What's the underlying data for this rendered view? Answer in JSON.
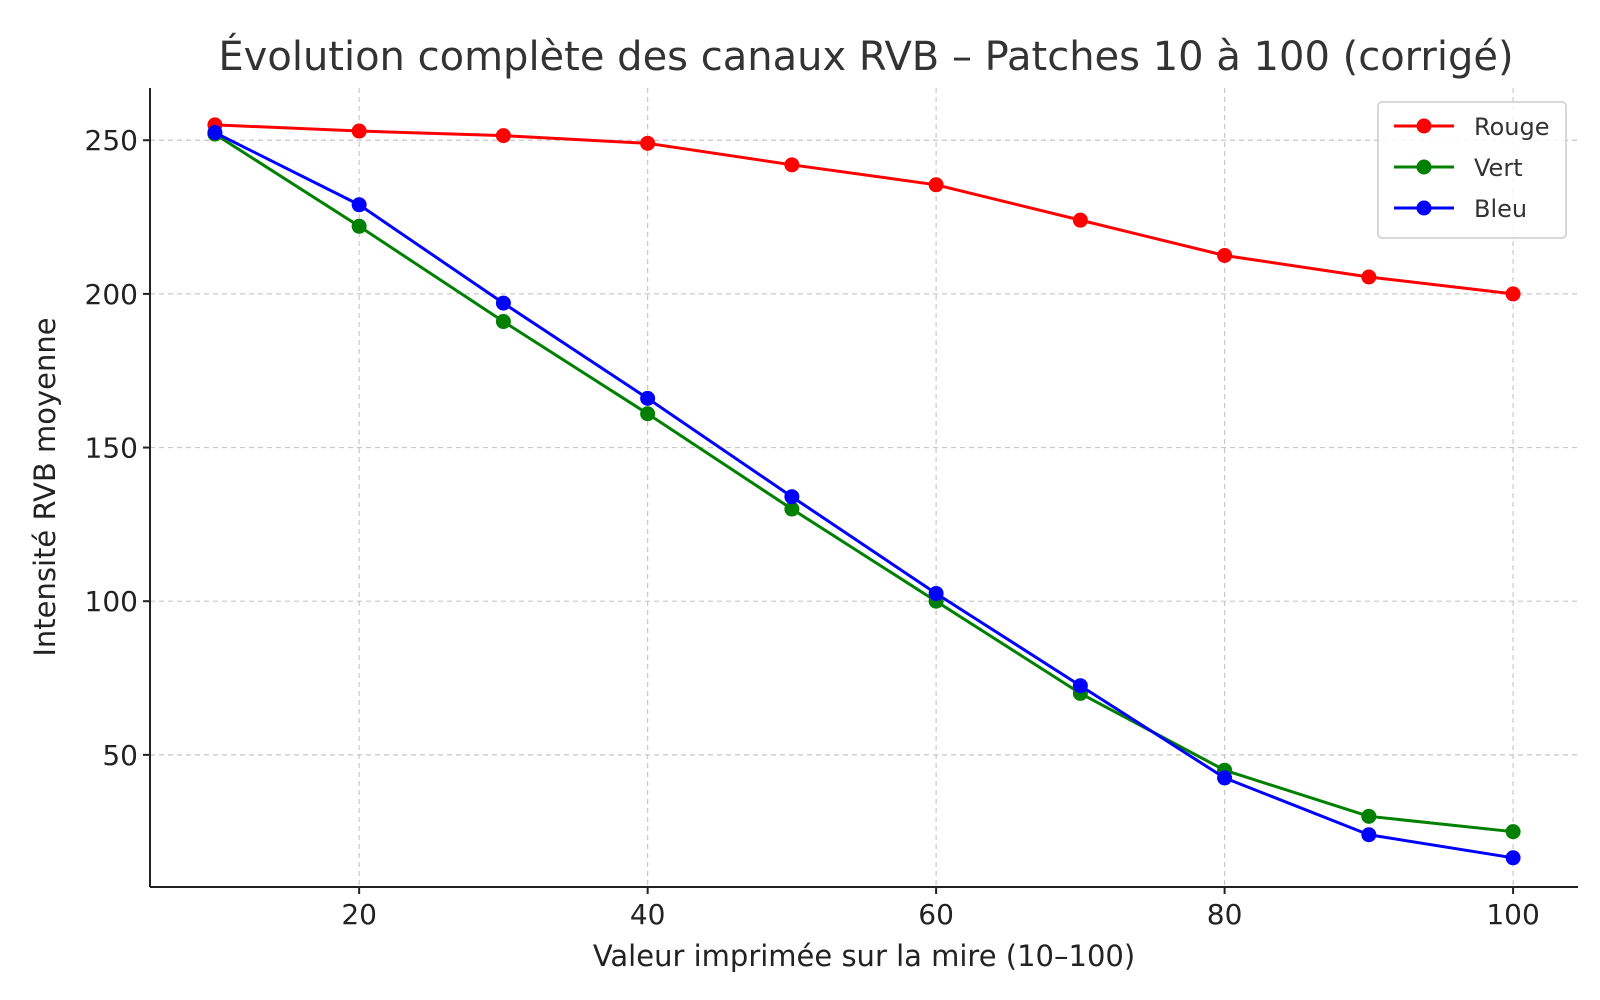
{
  "chart_data": {
    "type": "line",
    "title": "Évolution complète des canaux RVB – Patches 10 à 100 (corrigé)",
    "xlabel": "Valeur imprimée sur la mire (10–100)",
    "ylabel": "Intensité RVB moyenne",
    "x": [
      10,
      20,
      30,
      40,
      50,
      60,
      70,
      80,
      90,
      100
    ],
    "xlim": [
      5.5,
      104.5
    ],
    "ylim": [
      7,
      267
    ],
    "xticks": [
      20,
      40,
      60,
      80,
      100
    ],
    "yticks": [
      50,
      100,
      150,
      200,
      250
    ],
    "grid": true,
    "legend_position": "top-right",
    "series": [
      {
        "name": "Rouge",
        "color": "#ff0000",
        "values": [
          255,
          253,
          251.5,
          249,
          242,
          235.5,
          224,
          212.5,
          205.5,
          200
        ]
      },
      {
        "name": "Vert",
        "color": "#008000",
        "values": [
          252,
          222,
          191,
          161,
          130,
          100,
          70,
          45,
          30,
          25
        ]
      },
      {
        "name": "Bleu",
        "color": "#0000ff",
        "values": [
          252.5,
          229,
          197,
          166,
          134,
          102.5,
          72.5,
          42.5,
          24,
          16.5
        ]
      }
    ]
  }
}
